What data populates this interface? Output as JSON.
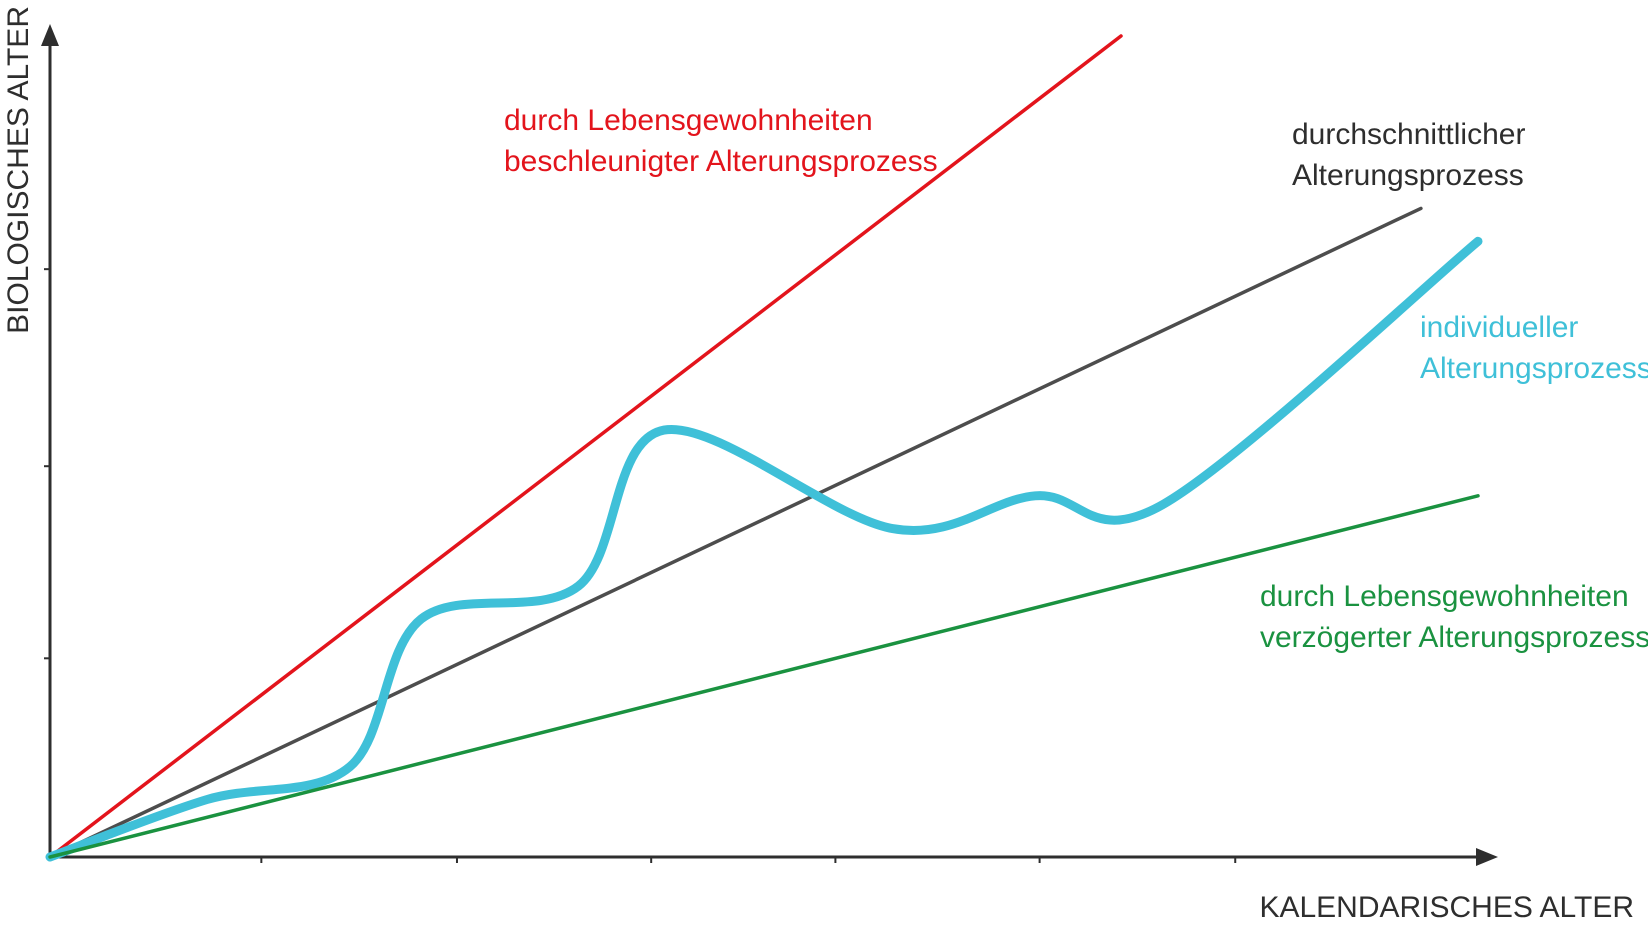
{
  "chart_data": {
    "type": "line",
    "xlabel": "KALENDARISCHES ALTER",
    "ylabel": "BIOLOGISCHES ALTER",
    "xlim": [
      0,
      100
    ],
    "ylim": [
      0,
      100
    ],
    "grid": false,
    "legend": "inline",
    "series": [
      {
        "key": "accelerated",
        "name": [
          "durch Lebensgewohnheiten",
          "beschleunigter Alterungsprozess"
        ],
        "color": "#e3141c",
        "x": [
          0,
          75
        ],
        "y": [
          0,
          100
        ]
      },
      {
        "key": "average",
        "name": [
          "durchschnittlicher",
          "Alterungsprozess"
        ],
        "color": "#4d4d4d",
        "x": [
          0,
          96
        ],
        "y": [
          0,
          79
        ]
      },
      {
        "key": "individual",
        "name": [
          "individueller",
          "Alterungsprozess"
        ],
        "color": "#3fc0d8",
        "x": [
          0,
          11,
          21,
          26,
          37,
          43,
          59,
          69,
          78,
          100
        ],
        "y": [
          0,
          7,
          11,
          29,
          33,
          52,
          40,
          44,
          43,
          75
        ]
      },
      {
        "key": "delayed",
        "name": [
          "durch Lebensgewohnheiten",
          "verzögerter Alterungsprozess"
        ],
        "color": "#1a9240",
        "x": [
          0,
          100
        ],
        "y": [
          0,
          44
        ]
      }
    ]
  }
}
